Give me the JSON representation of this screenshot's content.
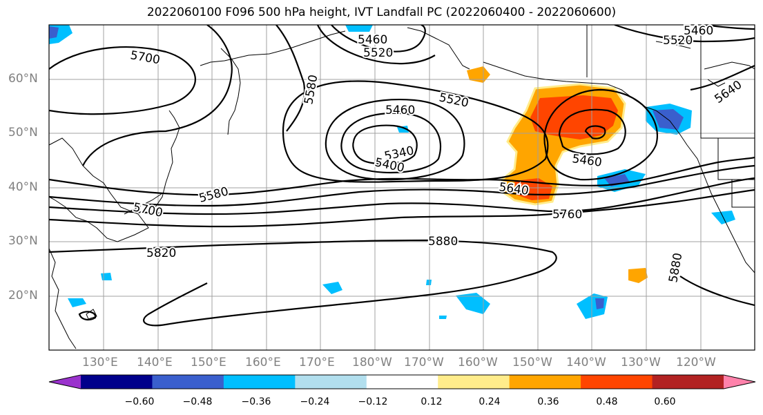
{
  "title": "2022060100 F096 500 hPa height, IVT Landfall PC (2022060400 - 2022060600)",
  "lat_labels": [
    "60°N",
    "50°N",
    "40°N",
    "30°N",
    "20°N"
  ],
  "lon_labels": [
    "130°E",
    "140°E",
    "150°E",
    "160°E",
    "170°E",
    "180°W",
    "170°W",
    "160°W",
    "150°W",
    "140°W",
    "130°W",
    "120°W"
  ],
  "contour_labels": {
    "c5460_top": "5460",
    "c5520_top": "5520",
    "c5460_topright": "5460",
    "c5520_topright": "5520",
    "c5700_left": "5700",
    "c5580_mid": "5580",
    "c5460_low": "5460",
    "c5520_low": "5520",
    "c5340_low": "5340",
    "c5400_low": "5400",
    "c5580_left": "5580",
    "c5700_low": "5700",
    "c5820": "5820",
    "c5880": "5880",
    "c5640_e": "5640",
    "c5460_e": "5460",
    "c5760": "5760",
    "c5640_ne": "5640",
    "c5880_e": "5880"
  },
  "colorbar": {
    "colors": [
      "#9a32cd",
      "#00008b",
      "#3a5fcd",
      "#00bfff",
      "#b2dfee",
      "#ffffff",
      "#ffec8b",
      "#ffa500",
      "#ff4500",
      "#b22222",
      "#ff82ab"
    ],
    "tick_labels": [
      "−0.60",
      "−0.48",
      "−0.36",
      "−0.24",
      "−0.12",
      "0.12",
      "0.24",
      "0.36",
      "0.48",
      "0.60"
    ]
  }
}
